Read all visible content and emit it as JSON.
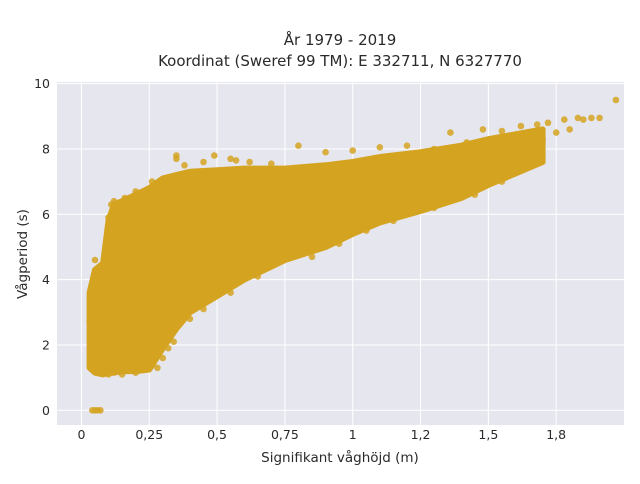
{
  "chart_data": {
    "type": "scatter",
    "title": [
      "År 1979 - 2019",
      "Koordinat (Sweref 99 TM): E 332711, N 6327770"
    ],
    "xlabel": "Signifikant våghöjd (m)",
    "ylabel": "Vågperiod (s)",
    "xlim": [
      -0.09,
      2.0
    ],
    "ylim": [
      -0.45,
      10.05
    ],
    "xticks": [
      {
        "value": 0,
        "label": "0"
      },
      {
        "value": 0.25,
        "label": "0,25"
      },
      {
        "value": 0.5,
        "label": "0,5"
      },
      {
        "value": 0.75,
        "label": "0,75"
      },
      {
        "value": 1,
        "label": "1"
      },
      {
        "value": 1.25,
        "label": "1,2"
      },
      {
        "value": 1.5,
        "label": "1,5"
      },
      {
        "value": 1.75,
        "label": "1,8"
      }
    ],
    "yticks": [
      {
        "value": 0,
        "label": "0"
      },
      {
        "value": 2,
        "label": "2"
      },
      {
        "value": 4,
        "label": "4"
      },
      {
        "value": 6,
        "label": "6"
      },
      {
        "value": 8,
        "label": "8"
      },
      {
        "value": 10,
        "label": "10"
      }
    ],
    "grid": true,
    "background_color": "#e6e6ef",
    "marker_color": "#d4a320",
    "envelope": {
      "x": [
        0.03,
        0.05,
        0.08,
        0.1,
        0.12,
        0.15,
        0.2,
        0.25,
        0.3,
        0.35,
        0.4,
        0.5,
        0.6,
        0.75,
        0.9,
        1.0,
        1.1,
        1.25,
        1.4,
        1.5,
        1.6,
        1.7
      ],
      "y_low": [
        1.3,
        1.15,
        1.1,
        1.15,
        1.15,
        1.2,
        1.2,
        1.25,
        1.9,
        2.5,
        3.0,
        3.5,
        4.0,
        4.6,
        5.0,
        5.4,
        5.75,
        6.1,
        6.5,
        6.9,
        7.25,
        7.6
      ],
      "y_high": [
        3.6,
        4.3,
        4.5,
        5.8,
        6.3,
        6.4,
        6.6,
        6.8,
        7.1,
        7.2,
        7.3,
        7.35,
        7.4,
        7.4,
        7.5,
        7.6,
        7.75,
        7.9,
        8.1,
        8.3,
        8.45,
        8.6
      ]
    },
    "points": [
      {
        "x": 0.05,
        "y": 0.0
      },
      {
        "x": 0.06,
        "y": 0.0
      },
      {
        "x": 0.07,
        "y": 0.0
      },
      {
        "x": 0.04,
        "y": 0.0
      },
      {
        "x": 0.03,
        "y": 2.7
      },
      {
        "x": 0.04,
        "y": 3.4
      },
      {
        "x": 0.05,
        "y": 4.6
      },
      {
        "x": 0.07,
        "y": 4.4
      },
      {
        "x": 0.08,
        "y": 4.2
      },
      {
        "x": 0.1,
        "y": 5.9
      },
      {
        "x": 0.11,
        "y": 6.3
      },
      {
        "x": 0.12,
        "y": 6.4
      },
      {
        "x": 0.16,
        "y": 6.5
      },
      {
        "x": 0.2,
        "y": 6.7
      },
      {
        "x": 0.26,
        "y": 7.0
      },
      {
        "x": 0.35,
        "y": 7.8
      },
      {
        "x": 0.35,
        "y": 7.7
      },
      {
        "x": 0.38,
        "y": 7.5
      },
      {
        "x": 0.45,
        "y": 7.6
      },
      {
        "x": 0.49,
        "y": 7.8
      },
      {
        "x": 0.55,
        "y": 7.7
      },
      {
        "x": 0.57,
        "y": 7.65
      },
      {
        "x": 0.62,
        "y": 7.6
      },
      {
        "x": 0.7,
        "y": 7.55
      },
      {
        "x": 0.8,
        "y": 8.1
      },
      {
        "x": 0.9,
        "y": 7.9
      },
      {
        "x": 1.0,
        "y": 7.95
      },
      {
        "x": 1.1,
        "y": 8.05
      },
      {
        "x": 1.2,
        "y": 8.1
      },
      {
        "x": 1.3,
        "y": 8.0
      },
      {
        "x": 1.36,
        "y": 8.5
      },
      {
        "x": 1.42,
        "y": 8.2
      },
      {
        "x": 1.48,
        "y": 8.6
      },
      {
        "x": 1.55,
        "y": 8.55
      },
      {
        "x": 1.58,
        "y": 8.4
      },
      {
        "x": 1.62,
        "y": 8.7
      },
      {
        "x": 1.68,
        "y": 8.75
      },
      {
        "x": 1.72,
        "y": 8.8
      },
      {
        "x": 1.78,
        "y": 8.9
      },
      {
        "x": 1.83,
        "y": 8.95
      },
      {
        "x": 1.85,
        "y": 8.9
      },
      {
        "x": 1.88,
        "y": 8.95
      },
      {
        "x": 1.91,
        "y": 8.95
      },
      {
        "x": 1.97,
        "y": 9.5
      },
      {
        "x": 1.75,
        "y": 8.5
      },
      {
        "x": 1.7,
        "y": 8.3
      },
      {
        "x": 1.65,
        "y": 8.1
      },
      {
        "x": 1.8,
        "y": 8.6
      },
      {
        "x": 0.3,
        "y": 1.6
      },
      {
        "x": 0.32,
        "y": 1.9
      },
      {
        "x": 0.34,
        "y": 2.1
      },
      {
        "x": 0.28,
        "y": 1.3
      },
      {
        "x": 0.2,
        "y": 1.15
      },
      {
        "x": 0.15,
        "y": 1.1
      },
      {
        "x": 0.1,
        "y": 1.1
      },
      {
        "x": 0.4,
        "y": 2.8
      },
      {
        "x": 0.45,
        "y": 3.1
      },
      {
        "x": 0.55,
        "y": 3.6
      },
      {
        "x": 0.65,
        "y": 4.1
      },
      {
        "x": 0.85,
        "y": 4.7
      },
      {
        "x": 0.95,
        "y": 5.1
      },
      {
        "x": 1.05,
        "y": 5.5
      },
      {
        "x": 1.15,
        "y": 5.8
      },
      {
        "x": 1.3,
        "y": 6.2
      },
      {
        "x": 1.45,
        "y": 6.6
      },
      {
        "x": 1.55,
        "y": 7.0
      }
    ]
  }
}
